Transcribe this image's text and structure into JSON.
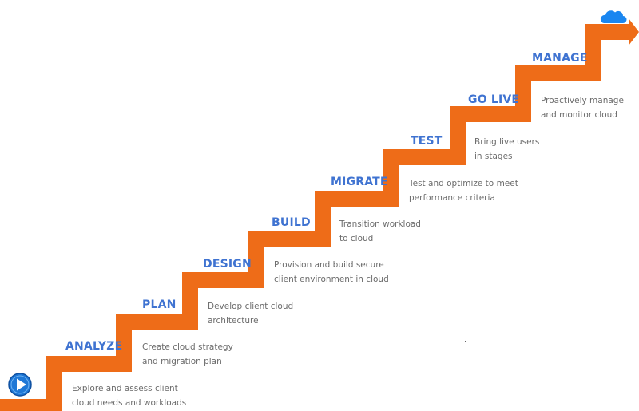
{
  "colors": {
    "stair": "#ee6c18",
    "title": "#3f73d1",
    "description": "#6b6b6b",
    "play_button": "#1f78d6",
    "cloud": "#1a86f0"
  },
  "icons": {
    "start": "play-icon",
    "end": "cloud-icon"
  },
  "steps": [
    {
      "title": "ANALYZE",
      "description": [
        "Explore and assess client",
        "cloud needs and workloads"
      ]
    },
    {
      "title": "PLAN",
      "description": [
        "Create cloud strategy",
        "and migration plan"
      ]
    },
    {
      "title": "DESIGN",
      "description": [
        "Develop client cloud",
        "architecture"
      ]
    },
    {
      "title": "BUILD",
      "description": [
        "Provision and build secure",
        "client environment in cloud"
      ]
    },
    {
      "title": "MIGRATE",
      "description": [
        "Transition workload",
        "to cloud"
      ]
    },
    {
      "title": "TEST",
      "description": [
        "Test and optimize to meet",
        "performance criteria"
      ]
    },
    {
      "title": "GO LIVE",
      "description": [
        "Bring live users",
        "in stages"
      ]
    },
    {
      "title": "MANAGE",
      "description": [
        "Proactively manage",
        "and monitor cloud"
      ]
    }
  ]
}
